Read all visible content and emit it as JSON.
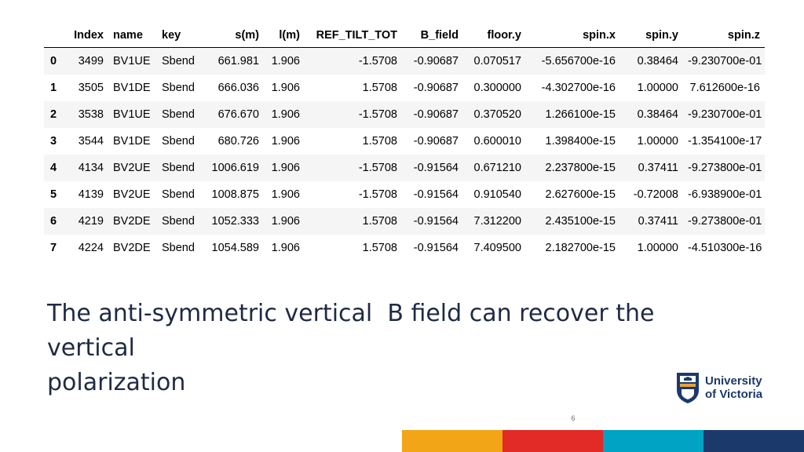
{
  "table": {
    "columns": [
      "",
      "Index",
      "name",
      "key",
      "s(m)",
      "l(m)",
      "REF_TILT_TOT",
      "B_field",
      "floor.y",
      "spin.x",
      "spin.y",
      "spin.z"
    ],
    "rows": [
      [
        "0",
        "3499",
        "BV1UE",
        "Sbend",
        "661.981",
        "1.906",
        "-1.5708",
        "-0.90687",
        "0.070517",
        "-5.656700e-16",
        "0.38464",
        "-9.230700e-01"
      ],
      [
        "1",
        "3505",
        "BV1DE",
        "Sbend",
        "666.036",
        "1.906",
        "1.5708",
        "-0.90687",
        "0.300000",
        "-4.302700e-16",
        "1.00000",
        "7.612600e-16"
      ],
      [
        "2",
        "3538",
        "BV1UE",
        "Sbend",
        "676.670",
        "1.906",
        "-1.5708",
        "-0.90687",
        "0.370520",
        "1.266100e-15",
        "0.38464",
        "-9.230700e-01"
      ],
      [
        "3",
        "3544",
        "BV1DE",
        "Sbend",
        "680.726",
        "1.906",
        "1.5708",
        "-0.90687",
        "0.600010",
        "1.398400e-15",
        "1.00000",
        "-1.354100e-17"
      ],
      [
        "4",
        "4134",
        "BV2UE",
        "Sbend",
        "1006.619",
        "1.906",
        "-1.5708",
        "-0.91564",
        "0.671210",
        "2.237800e-15",
        "0.37411",
        "-9.273800e-01"
      ],
      [
        "5",
        "4139",
        "BV2UE",
        "Sbend",
        "1008.875",
        "1.906",
        "-1.5708",
        "-0.91564",
        "0.910540",
        "2.627600e-15",
        "-0.72008",
        "-6.938900e-01"
      ],
      [
        "6",
        "4219",
        "BV2DE",
        "Sbend",
        "1052.333",
        "1.906",
        "1.5708",
        "-0.91564",
        "7.312200",
        "2.435100e-15",
        "0.37411",
        "-9.273800e-01"
      ],
      [
        "7",
        "4224",
        "BV2DE",
        "Sbend",
        "1054.589",
        "1.906",
        "1.5708",
        "-0.91564",
        "7.409500",
        "2.182700e-15",
        "1.00000",
        "-4.510300e-16"
      ]
    ]
  },
  "body_text": "The anti-symmetric vertical  B field can recover the vertical\npolarization",
  "logo": {
    "line1": "University",
    "line2": "of Victoria"
  },
  "page_number": "6",
  "colors": {
    "text": "#1f2a44",
    "logo_blue": "#1b3a6b",
    "logo_gold": "#e6a23c",
    "bar": [
      "#f2a516",
      "#e22a26",
      "#00a3c4",
      "#1b3a6b"
    ]
  }
}
